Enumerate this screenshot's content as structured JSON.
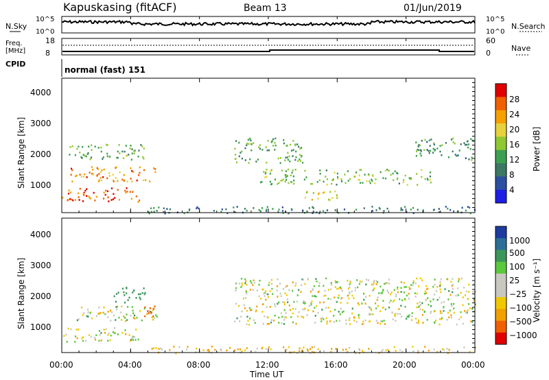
{
  "header": {
    "station": "Kapuskasing (fitACF)",
    "beam": "Beam 13",
    "date": "01/Jun/2019"
  },
  "noise_panel": {
    "left_label": "N.Sky",
    "right_label": "N.Search",
    "ticks_left": [
      "10^5",
      "10^0"
    ],
    "ticks_right": [
      "10^5",
      "10^0"
    ]
  },
  "freq_panel": {
    "left_label_1": "Freq.",
    "left_label_2": "[MHz]",
    "right_label": "Nave",
    "cpid_label": "CPID",
    "ticks_left": [
      "18",
      "8"
    ],
    "ticks_right": [
      "60",
      "0"
    ]
  },
  "cpid_text": "normal (fast) 151",
  "x_axis": {
    "title": "Time UT",
    "ticks": [
      "00:00",
      "04:00",
      "08:00",
      "12:00",
      "16:00",
      "20:00",
      "00:00"
    ]
  },
  "power_panel": {
    "ylabel": "Slant Range [km]",
    "yticks": [
      "4000",
      "3000",
      "2000",
      "1000"
    ],
    "colorbar_label": "Power [dB]",
    "colorbar_ticks": [
      "28",
      "24",
      "20",
      "16",
      "12",
      "8",
      "4"
    ],
    "colors": [
      "#e00000",
      "#f06000",
      "#f5a000",
      "#e6d23c",
      "#8fc832",
      "#3ca050",
      "#3c7864",
      "#2d4fa0",
      "#1e1ee6"
    ]
  },
  "velocity_panel": {
    "ylabel": "Slant Range [km]",
    "yticks": [
      "4000",
      "3000",
      "2000",
      "1000"
    ],
    "colorbar_label": "Velocity [m s⁻¹]",
    "colorbar_ticks": [
      "1000",
      "500",
      "100",
      "25",
      "−25",
      "−100",
      "−500",
      "−1000"
    ],
    "colors": [
      "#1e3ca0",
      "#2d6e96",
      "#3c965a",
      "#5ac83c",
      "#c8c8c0",
      "#c8c8c0",
      "#f0c800",
      "#f0a000",
      "#f06000",
      "#e00000"
    ]
  },
  "chart_data": [
    {
      "type": "line",
      "title": "Kapuskasing (fitACF)  Beam 13  01/Jun/2019",
      "x": [
        "00:00",
        "04:00",
        "08:00",
        "12:00",
        "16:00",
        "20:00",
        "00:00"
      ],
      "series": [
        {
          "name": "N.Sky",
          "description": "noise sky, log scale 10^0 to 10^5, near upper range throughout day"
        },
        {
          "name": "Freq.",
          "values_mhz": [
            11.5,
            11.5,
            11.5,
            11.5,
            12,
            12,
            11.5
          ],
          "ylim": [
            8,
            18
          ]
        }
      ]
    },
    {
      "type": "heatmap",
      "title": "Power [dB]",
      "xlabel": "Time UT",
      "ylabel": "Slant Range [km]",
      "xlim": [
        "00:00",
        "24:00"
      ],
      "ylim": [
        180,
        4500
      ],
      "zlim": [
        0,
        30
      ],
      "regions": [
        {
          "t_start_h": 0.5,
          "t_end_h": 5.5,
          "range_km": [
            1200,
            1700
          ],
          "power_db": 24
        },
        {
          "t_start_h": 0.0,
          "t_end_h": 4.5,
          "range_km": [
            550,
            1000
          ],
          "power_db": 26
        },
        {
          "t_start_h": 0.3,
          "t_end_h": 5.0,
          "range_km": [
            1900,
            2400
          ],
          "power_db": 12
        },
        {
          "t_start_h": 10.0,
          "t_end_h": 14.0,
          "range_km": [
            1800,
            2600
          ],
          "power_db": 12
        },
        {
          "t_start_h": 11.5,
          "t_end_h": 21.5,
          "range_km": [
            1100,
            1600
          ],
          "power_db": 14
        },
        {
          "t_start_h": 14.0,
          "t_end_h": 16.5,
          "range_km": [
            600,
            900
          ],
          "power_db": 18
        },
        {
          "t_start_h": 20.5,
          "t_end_h": 24.0,
          "range_km": [
            1900,
            2600
          ],
          "power_db": 10
        },
        {
          "t_start_h": 5.0,
          "t_end_h": 24.0,
          "range_km": [
            180,
            400
          ],
          "power_db": 8
        }
      ]
    },
    {
      "type": "heatmap",
      "title": "Velocity [m s-1]",
      "xlabel": "Time UT",
      "ylabel": "Slant Range [km]",
      "xlim": [
        "00:00",
        "24:00"
      ],
      "ylim": [
        180,
        4500
      ],
      "zlim": [
        -1000,
        1000
      ],
      "regions": [
        {
          "t_start_h": 0.5,
          "t_end_h": 5.5,
          "range_km": [
            1200,
            1700
          ],
          "velocity": 0
        },
        {
          "t_start_h": 4.5,
          "t_end_h": 5.5,
          "range_km": [
            1300,
            1700
          ],
          "velocity": -400
        },
        {
          "t_start_h": 0.0,
          "t_end_h": 4.5,
          "range_km": [
            550,
            1000
          ],
          "velocity": 0
        },
        {
          "t_start_h": 3.0,
          "t_end_h": 5.0,
          "range_km": [
            1800,
            2300
          ],
          "velocity": 150
        },
        {
          "t_start_h": 10.0,
          "t_end_h": 24.0,
          "range_km": [
            1100,
            2600
          ],
          "velocity": 0
        },
        {
          "t_start_h": 5.0,
          "t_end_h": 24.0,
          "range_km": [
            180,
            400
          ],
          "velocity": -50
        }
      ]
    }
  ]
}
